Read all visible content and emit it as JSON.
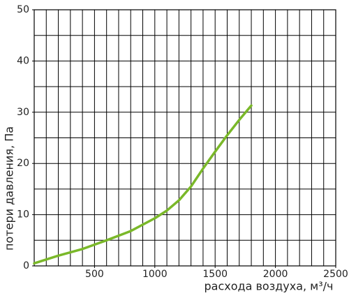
{
  "chart_data": {
    "type": "line",
    "x_label": "расхода воздуха, м³/ч",
    "y_label": "потери давления, Па",
    "x": [
      0,
      200,
      400,
      600,
      800,
      1000,
      1100,
      1200,
      1300,
      1400,
      1500,
      1600,
      1700,
      1800
    ],
    "series": [
      {
        "color": "#7ab829",
        "values": [
          0.5,
          2,
          3.3,
          5,
          6.8,
          9.3,
          10.8,
          12.8,
          15.5,
          19,
          22.3,
          25.5,
          28.5,
          31.3
        ]
      }
    ],
    "xlim": [
      0,
      2500
    ],
    "xticks": [
      500,
      1000,
      1500,
      2000,
      2500
    ],
    "ylim": [
      0,
      50
    ],
    "yticks": [
      0,
      10,
      20,
      30,
      40,
      50
    ],
    "x_grid_step": 100,
    "y_grid_step": 5,
    "grid": true
  }
}
